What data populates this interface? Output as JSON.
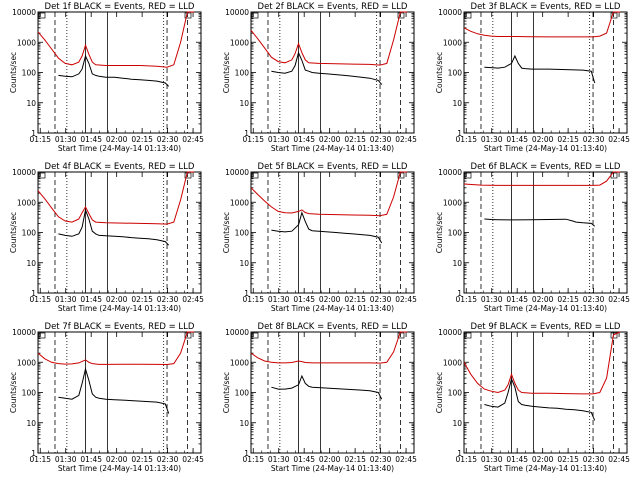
{
  "figure": {
    "background": "#ffffff",
    "events_color": "#000000",
    "lld_color": "#cc0000",
    "x_tick_labels": [
      "01:15",
      "01:30",
      "01:45",
      "02:00",
      "02:15",
      "02:30",
      "02:45"
    ],
    "y_tick_labels": [
      "1",
      "10",
      "100",
      "1000",
      "10000"
    ],
    "xlabel": "Start Time (24-May-14 01:13:40)",
    "ylabel": "Counts/sec"
  },
  "chart_data": [
    {
      "type": "line",
      "title": "Det 1f BLACK = Events, RED = LLD",
      "xlabel": "Start Time (24-May-14 01:13:40)",
      "ylabel": "Counts/sec",
      "xlim_minutes": [
        0,
        96
      ],
      "ylim": [
        1,
        10000
      ],
      "yscale": "log",
      "dashed_lines_min": [
        10,
        76,
        88
      ],
      "dotted_lines_min": [
        17,
        74
      ],
      "solid_lines_min": [
        28,
        41
      ],
      "series": [
        {
          "name": "Events",
          "color": "#000000",
          "x": [
            9,
            12,
            16,
            20,
            24,
            26,
            28,
            30,
            32,
            34,
            36,
            40,
            45,
            50,
            55,
            60,
            65,
            70,
            75,
            77,
            79
          ],
          "values": [
            null,
            80,
            75,
            72,
            90,
            130,
            350,
            200,
            90,
            80,
            75,
            70,
            70,
            65,
            60,
            58,
            55,
            52,
            45,
            35,
            null
          ]
        },
        {
          "name": "LLD",
          "color": "#cc0000",
          "x": [
            0,
            4,
            8,
            12,
            16,
            20,
            24,
            26,
            28,
            30,
            32,
            34,
            40,
            50,
            60,
            70,
            76,
            80,
            84,
            88,
            92
          ],
          "values": [
            2200,
            1200,
            600,
            300,
            200,
            180,
            220,
            350,
            800,
            400,
            220,
            180,
            170,
            170,
            170,
            160,
            150,
            180,
            1000,
            10000,
            10000
          ]
        }
      ]
    },
    {
      "type": "line",
      "title": "Det 2f BLACK = Events, RED = LLD",
      "xlabel": "Start Time (24-May-14 01:13:40)",
      "ylabel": "Counts/sec",
      "xlim_minutes": [
        0,
        96
      ],
      "ylim": [
        1,
        10000
      ],
      "yscale": "log",
      "dashed_lines_min": [
        10,
        76,
        88
      ],
      "dotted_lines_min": [
        17,
        74
      ],
      "solid_lines_min": [
        28,
        41
      ],
      "series": [
        {
          "name": "Events",
          "color": "#000000",
          "x": [
            9,
            12,
            16,
            20,
            24,
            26,
            28,
            30,
            32,
            34,
            36,
            40,
            45,
            50,
            55,
            60,
            65,
            70,
            75,
            77,
            79
          ],
          "values": [
            null,
            110,
            100,
            95,
            110,
            170,
            450,
            250,
            120,
            110,
            100,
            95,
            90,
            85,
            80,
            75,
            70,
            65,
            55,
            40,
            null
          ]
        },
        {
          "name": "LLD",
          "color": "#cc0000",
          "x": [
            0,
            4,
            8,
            12,
            16,
            20,
            24,
            26,
            28,
            30,
            32,
            34,
            40,
            50,
            60,
            70,
            76,
            80,
            84,
            88,
            92
          ],
          "values": [
            2500,
            1300,
            650,
            320,
            230,
            210,
            260,
            420,
            900,
            450,
            260,
            210,
            200,
            195,
            190,
            185,
            175,
            200,
            1200,
            10000,
            10000
          ]
        }
      ]
    },
    {
      "type": "line",
      "title": "Det 3f BLACK = Events, RED = LLD",
      "xlabel": "Start Time (24-May-14 01:13:40)",
      "ylabel": "Counts/sec",
      "xlim_minutes": [
        0,
        96
      ],
      "ylim": [
        1,
        10000
      ],
      "yscale": "log",
      "dashed_lines_min": [
        10,
        76,
        88
      ],
      "dotted_lines_min": [
        17,
        74
      ],
      "solid_lines_min": [
        28,
        41
      ],
      "series": [
        {
          "name": "Events",
          "color": "#000000",
          "x": [
            9,
            12,
            16,
            20,
            24,
            28,
            30,
            32,
            34,
            36,
            40,
            50,
            60,
            70,
            75,
            77,
            79
          ],
          "values": [
            null,
            150,
            145,
            140,
            150,
            200,
            350,
            200,
            140,
            135,
            130,
            130,
            125,
            120,
            110,
            45,
            null
          ]
        },
        {
          "name": "LLD",
          "color": "#cc0000",
          "x": [
            0,
            4,
            8,
            12,
            16,
            20,
            30,
            40,
            50,
            60,
            70,
            76,
            80,
            84,
            88,
            92
          ],
          "values": [
            3000,
            2300,
            1900,
            1700,
            1600,
            1550,
            1550,
            1520,
            1500,
            1500,
            1500,
            1500,
            1600,
            2000,
            10000,
            10000
          ]
        }
      ]
    },
    {
      "type": "line",
      "title": "Det 4f BLACK = Events, RED = LLD",
      "xlabel": "Start Time (24-May-14 01:13:40)",
      "ylabel": "Counts/sec",
      "xlim_minutes": [
        0,
        96
      ],
      "ylim": [
        1,
        10000
      ],
      "yscale": "log",
      "dashed_lines_min": [
        10,
        76,
        88
      ],
      "dotted_lines_min": [
        17,
        74
      ],
      "solid_lines_min": [
        28,
        41
      ],
      "series": [
        {
          "name": "Events",
          "color": "#000000",
          "x": [
            9,
            12,
            16,
            20,
            24,
            26,
            28,
            30,
            32,
            34,
            36,
            40,
            45,
            50,
            55,
            60,
            65,
            70,
            75,
            77,
            79
          ],
          "values": [
            null,
            90,
            80,
            75,
            90,
            150,
            550,
            280,
            110,
            90,
            80,
            78,
            75,
            72,
            68,
            65,
            62,
            58,
            50,
            38,
            null
          ]
        },
        {
          "name": "LLD",
          "color": "#cc0000",
          "x": [
            0,
            4,
            8,
            12,
            16,
            20,
            24,
            26,
            28,
            30,
            32,
            34,
            40,
            50,
            60,
            70,
            76,
            80,
            84,
            88,
            92
          ],
          "values": [
            2400,
            1300,
            650,
            330,
            240,
            220,
            280,
            450,
            700,
            420,
            260,
            220,
            210,
            205,
            200,
            195,
            190,
            220,
            1200,
            10000,
            10000
          ]
        }
      ]
    },
    {
      "type": "line",
      "title": "Det 5f BLACK = Events, RED = LLD",
      "xlabel": "Start Time (24-May-14 01:13:40)",
      "ylabel": "Counts/sec",
      "xlim_minutes": [
        0,
        96
      ],
      "ylim": [
        1,
        10000
      ],
      "yscale": "log",
      "dashed_lines_min": [
        10,
        76,
        88
      ],
      "dotted_lines_min": [
        17,
        74
      ],
      "solid_lines_min": [
        28,
        41
      ],
      "series": [
        {
          "name": "Events",
          "color": "#000000",
          "x": [
            9,
            12,
            16,
            20,
            24,
            28,
            30,
            32,
            34,
            36,
            40,
            45,
            50,
            55,
            60,
            65,
            70,
            75,
            77,
            79
          ],
          "values": [
            null,
            120,
            110,
            105,
            110,
            180,
            450,
            230,
            130,
            115,
            110,
            105,
            100,
            95,
            90,
            85,
            80,
            70,
            45,
            null
          ]
        },
        {
          "name": "LLD",
          "color": "#cc0000",
          "x": [
            0,
            4,
            8,
            12,
            16,
            20,
            24,
            28,
            30,
            32,
            34,
            40,
            50,
            60,
            70,
            76,
            80,
            84,
            88,
            92
          ],
          "values": [
            3000,
            1800,
            1100,
            700,
            500,
            450,
            440,
            500,
            560,
            460,
            420,
            400,
            390,
            380,
            370,
            360,
            400,
            1500,
            10000,
            10000
          ]
        }
      ]
    },
    {
      "type": "line",
      "title": "Det 6f BLACK = Events, RED = LLD",
      "xlabel": "Start Time (24-May-14 01:13:40)",
      "ylabel": "Counts/sec",
      "xlim_minutes": [
        0,
        96
      ],
      "ylim": [
        1,
        10000
      ],
      "yscale": "log",
      "dashed_lines_min": [
        10,
        76,
        88
      ],
      "dotted_lines_min": [
        17,
        74
      ],
      "solid_lines_min": [
        28,
        41
      ],
      "series": [
        {
          "name": "Events",
          "color": "#000000",
          "x": [
            9,
            12,
            16,
            20,
            30,
            40,
            50,
            60,
            64,
            66,
            70,
            75,
            77,
            79
          ],
          "values": [
            null,
            280,
            270,
            265,
            260,
            265,
            270,
            275,
            240,
            220,
            210,
            200,
            160,
            null
          ]
        },
        {
          "name": "LLD",
          "color": "#cc0000",
          "x": [
            0,
            10,
            20,
            30,
            40,
            50,
            60,
            70,
            76,
            80,
            84,
            88,
            92
          ],
          "values": [
            4000,
            3700,
            3600,
            3600,
            3600,
            3600,
            3600,
            3600,
            3600,
            3700,
            5000,
            10000,
            10000
          ]
        }
      ]
    },
    {
      "type": "line",
      "title": "Det 7f BLACK = Events, RED = LLD",
      "xlabel": "Start Time (24-May-14 01:13:40)",
      "ylabel": "Counts/sec",
      "xlim_minutes": [
        0,
        96
      ],
      "ylim": [
        1,
        10000
      ],
      "yscale": "log",
      "dashed_lines_min": [
        10,
        76,
        88
      ],
      "dotted_lines_min": [
        17,
        74
      ],
      "solid_lines_min": [
        28,
        41
      ],
      "series": [
        {
          "name": "Events",
          "color": "#000000",
          "x": [
            9,
            12,
            16,
            20,
            24,
            26,
            28,
            30,
            32,
            34,
            36,
            40,
            45,
            50,
            55,
            60,
            65,
            70,
            75,
            77,
            79
          ],
          "values": [
            null,
            70,
            65,
            60,
            80,
            200,
            600,
            250,
            90,
            70,
            65,
            60,
            58,
            56,
            54,
            52,
            50,
            48,
            42,
            20,
            null
          ]
        },
        {
          "name": "LLD",
          "color": "#cc0000",
          "x": [
            0,
            4,
            8,
            12,
            16,
            20,
            24,
            28,
            30,
            32,
            36,
            40,
            50,
            60,
            70,
            76,
            80,
            84,
            88,
            92
          ],
          "values": [
            2000,
            1300,
            1000,
            900,
            870,
            880,
            950,
            1200,
            1000,
            900,
            850,
            850,
            860,
            860,
            850,
            840,
            900,
            2000,
            10000,
            10000
          ]
        }
      ]
    },
    {
      "type": "line",
      "title": "Det 8f BLACK = Events, RED = LLD",
      "xlabel": "Start Time (24-May-14 01:13:40)",
      "ylabel": "Counts/sec",
      "xlim_minutes": [
        0,
        96
      ],
      "ylim": [
        1,
        10000
      ],
      "yscale": "log",
      "dashed_lines_min": [
        10,
        76,
        88
      ],
      "dotted_lines_min": [
        17,
        74
      ],
      "solid_lines_min": [
        28,
        41
      ],
      "series": [
        {
          "name": "Events",
          "color": "#000000",
          "x": [
            9,
            12,
            16,
            20,
            24,
            28,
            30,
            32,
            34,
            36,
            40,
            45,
            50,
            55,
            60,
            65,
            70,
            75,
            77,
            79
          ],
          "values": [
            null,
            150,
            130,
            130,
            140,
            180,
            350,
            200,
            160,
            150,
            145,
            140,
            135,
            130,
            125,
            120,
            115,
            100,
            60,
            null
          ]
        },
        {
          "name": "LLD",
          "color": "#cc0000",
          "x": [
            0,
            4,
            8,
            12,
            16,
            20,
            24,
            28,
            30,
            32,
            36,
            40,
            50,
            60,
            70,
            76,
            80,
            84,
            88,
            92
          ],
          "values": [
            2000,
            1400,
            1100,
            1000,
            950,
            950,
            980,
            1100,
            1050,
            980,
            950,
            950,
            950,
            950,
            950,
            940,
            1000,
            2200,
            10000,
            10000
          ]
        }
      ]
    },
    {
      "type": "line",
      "title": "Det 9f BLACK = Events, RED = LLD",
      "xlabel": "Start Time (24-May-14 01:13:40)",
      "ylabel": "Counts/sec",
      "xlim_minutes": [
        0,
        96
      ],
      "ylim": [
        1,
        10000
      ],
      "yscale": "log",
      "dashed_lines_min": [
        10,
        76,
        88
      ],
      "dotted_lines_min": [
        17,
        74
      ],
      "solid_lines_min": [
        28,
        41
      ],
      "series": [
        {
          "name": "Events",
          "color": "#000000",
          "x": [
            9,
            12,
            16,
            20,
            24,
            26,
            28,
            30,
            32,
            34,
            36,
            40,
            45,
            50,
            55,
            60,
            65,
            70,
            75,
            77,
            79
          ],
          "values": [
            null,
            40,
            35,
            33,
            45,
            100,
            280,
            150,
            50,
            40,
            38,
            35,
            33,
            31,
            30,
            28,
            27,
            25,
            22,
            12,
            null
          ]
        },
        {
          "name": "LLD",
          "color": "#cc0000",
          "x": [
            0,
            4,
            8,
            12,
            16,
            20,
            24,
            26,
            28,
            30,
            32,
            34,
            40,
            50,
            60,
            70,
            76,
            80,
            84,
            88,
            92
          ],
          "values": [
            1000,
            400,
            200,
            130,
            110,
            100,
            120,
            180,
            400,
            200,
            120,
            100,
            95,
            95,
            92,
            90,
            90,
            100,
            300,
            8000,
            10000
          ]
        }
      ]
    }
  ]
}
